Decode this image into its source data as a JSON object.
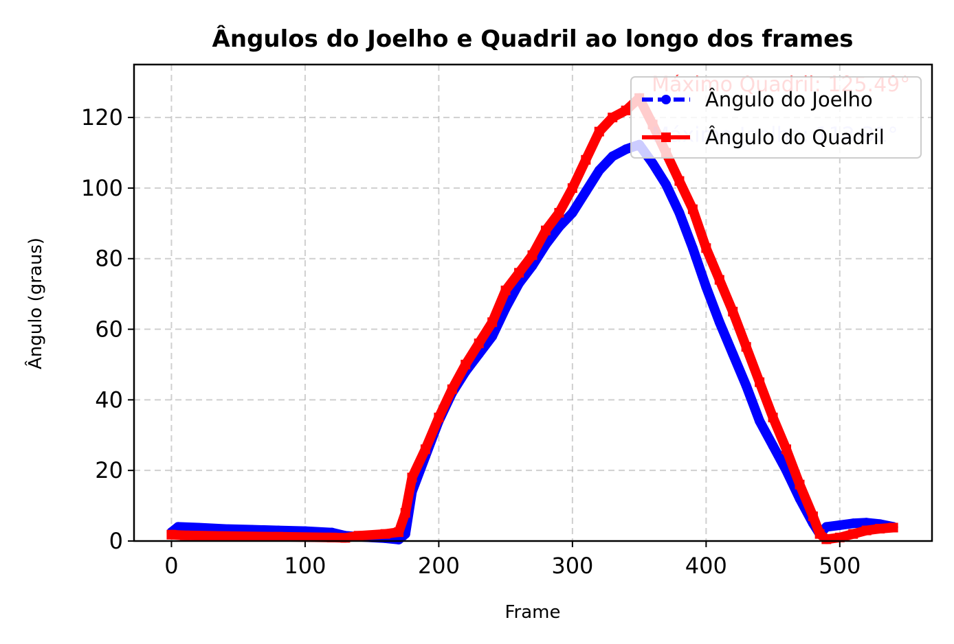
{
  "chart_data": {
    "type": "line",
    "title": "Ângulos do Joelho e Quadril ao longo dos frames",
    "xlabel": "Frame",
    "ylabel": "Ângulo (graus)",
    "xlim": [
      -28,
      569
    ],
    "ylim": [
      0,
      135
    ],
    "xticks": [
      0,
      100,
      200,
      300,
      400,
      500
    ],
    "yticks": [
      0,
      20,
      40,
      60,
      80,
      100,
      120
    ],
    "grid": true,
    "legend_position": "upper right",
    "series": [
      {
        "name": "Ângulo do Joelho",
        "color": "#0000ff",
        "marker": "circle",
        "linestyle": "dashed",
        "x": [
          0,
          5,
          20,
          40,
          60,
          80,
          100,
          120,
          130,
          140,
          160,
          170,
          175,
          180,
          190,
          200,
          210,
          220,
          230,
          240,
          250,
          260,
          270,
          280,
          290,
          300,
          310,
          320,
          330,
          340,
          350,
          360,
          370,
          380,
          390,
          400,
          410,
          420,
          430,
          440,
          450,
          460,
          470,
          480,
          485,
          490,
          500,
          510,
          520,
          530,
          540
        ],
        "values": [
          2.5,
          4,
          3.8,
          3.4,
          3.2,
          3.0,
          2.8,
          2.4,
          1.5,
          1.2,
          0.8,
          0.4,
          2,
          14,
          24,
          34,
          42,
          48,
          53,
          58,
          66,
          73,
          78,
          84,
          89,
          93,
          99,
          105,
          109,
          111,
          112.3,
          107,
          101,
          93,
          83,
          72,
          62,
          53,
          44,
          34,
          27,
          20,
          12,
          5,
          2,
          4,
          4.5,
          5,
          5.2,
          4.8,
          4
        ]
      },
      {
        "name": "Ângulo do Quadril",
        "color": "#ff0000",
        "marker": "square",
        "linestyle": "solid",
        "x": [
          0,
          10,
          40,
          80,
          120,
          130,
          140,
          160,
          170,
          175,
          180,
          190,
          200,
          210,
          220,
          230,
          240,
          250,
          260,
          270,
          280,
          290,
          300,
          310,
          320,
          330,
          340,
          350,
          360,
          370,
          380,
          390,
          400,
          410,
          420,
          430,
          440,
          450,
          460,
          470,
          480,
          485,
          490,
          500,
          510,
          520,
          530,
          540
        ],
        "values": [
          1.8,
          1.6,
          1.4,
          1.2,
          1.0,
          0.9,
          1.5,
          2,
          2.5,
          8,
          18,
          26,
          35,
          43,
          50,
          56,
          62,
          71,
          76,
          81,
          88,
          93,
          100,
          108,
          116,
          120,
          122,
          125.5,
          118,
          110,
          102,
          94,
          83,
          74,
          65,
          55,
          45,
          35,
          26,
          16,
          7,
          2,
          0.5,
          1,
          2,
          3,
          3.5,
          3.8
        ]
      }
    ],
    "annotations": [
      {
        "text": "Máximo Quadril: 125.49°",
        "x": 350,
        "y": 125.49,
        "color": "#ff0000",
        "alpha": 0.7
      },
      {
        "text": "Máximo Joelho: 112.31°",
        "x": 350,
        "y": 112.31,
        "color": "#0000ff",
        "alpha": 0.2
      }
    ]
  }
}
